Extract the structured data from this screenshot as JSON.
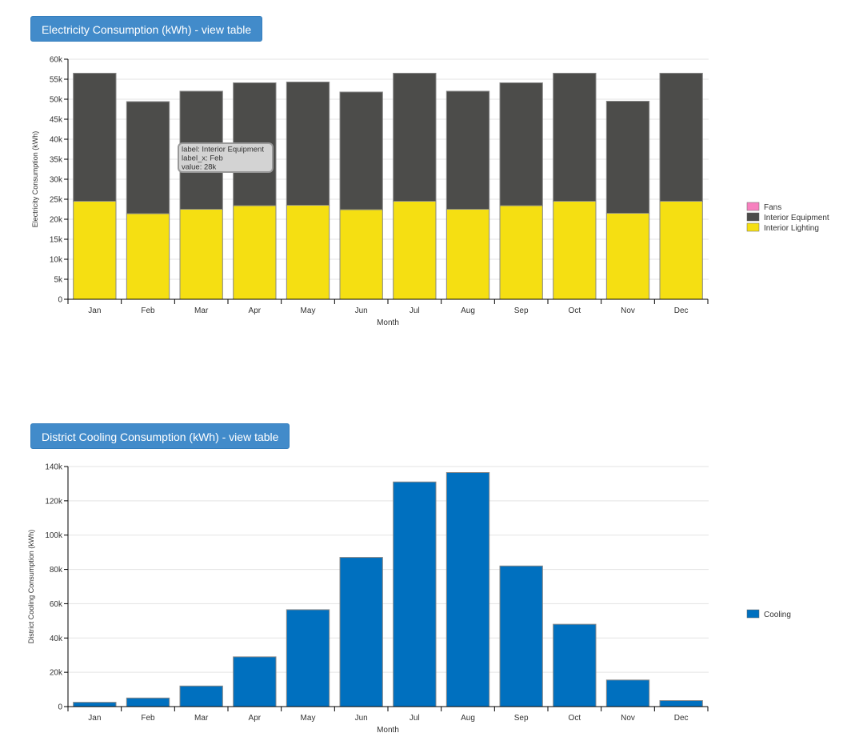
{
  "colors": {
    "fans": "#f781bf",
    "interior_equipment": "#4c4c4a",
    "interior_lighting": "#f5df12",
    "cooling": "#0070bf"
  },
  "buttons": {
    "electricity": "Electricity Consumption (kWh) - view table",
    "cooling": "District Cooling Consumption (kWh) - view table"
  },
  "tooltip": {
    "line1": "label: Interior Equipment",
    "line2": "label_x: Feb",
    "line3": "value: 28k"
  },
  "chart_data": [
    {
      "type": "bar",
      "stacked": true,
      "title": "Electricity Consumption (kWh)",
      "xlabel": "Month",
      "ylabel": "Electricity Consumption (kWh)",
      "ylim": [
        0,
        60000
      ],
      "yticks": [
        "0",
        "5k",
        "10k",
        "15k",
        "20k",
        "25k",
        "30k",
        "35k",
        "40k",
        "45k",
        "50k",
        "55k",
        "60k"
      ],
      "categories": [
        "Jan",
        "Feb",
        "Mar",
        "Apr",
        "May",
        "Jun",
        "Jul",
        "Aug",
        "Sep",
        "Oct",
        "Nov",
        "Dec"
      ],
      "legend": [
        "Fans",
        "Interior Equipment",
        "Interior Lighting"
      ],
      "series": [
        {
          "name": "Interior Lighting",
          "values": [
            24500,
            21400,
            22500,
            23400,
            23500,
            22400,
            24500,
            22500,
            23400,
            24500,
            21500,
            24500
          ]
        },
        {
          "name": "Interior Equipment",
          "values": [
            32000,
            28000,
            29500,
            30700,
            30800,
            29400,
            32000,
            29500,
            30700,
            32000,
            28000,
            32000
          ]
        },
        {
          "name": "Fans",
          "values": [
            0,
            0,
            0,
            0,
            0,
            0,
            0,
            0,
            0,
            0,
            0,
            0
          ]
        }
      ]
    },
    {
      "type": "bar",
      "title": "District Cooling Consumption (kWh)",
      "xlabel": "Month",
      "ylabel": "District Cooling Consumption (kWh)",
      "ylim": [
        0,
        140000
      ],
      "yticks": [
        "0",
        "20k",
        "40k",
        "60k",
        "80k",
        "100k",
        "120k",
        "140k"
      ],
      "categories": [
        "Jan",
        "Feb",
        "Mar",
        "Apr",
        "May",
        "Jun",
        "Jul",
        "Aug",
        "Sep",
        "Oct",
        "Nov",
        "Dec"
      ],
      "legend": [
        "Cooling"
      ],
      "series": [
        {
          "name": "Cooling",
          "values": [
            2500,
            5000,
            12000,
            29000,
            56500,
            87000,
            131000,
            136500,
            82000,
            48000,
            15500,
            3500
          ]
        }
      ]
    }
  ]
}
